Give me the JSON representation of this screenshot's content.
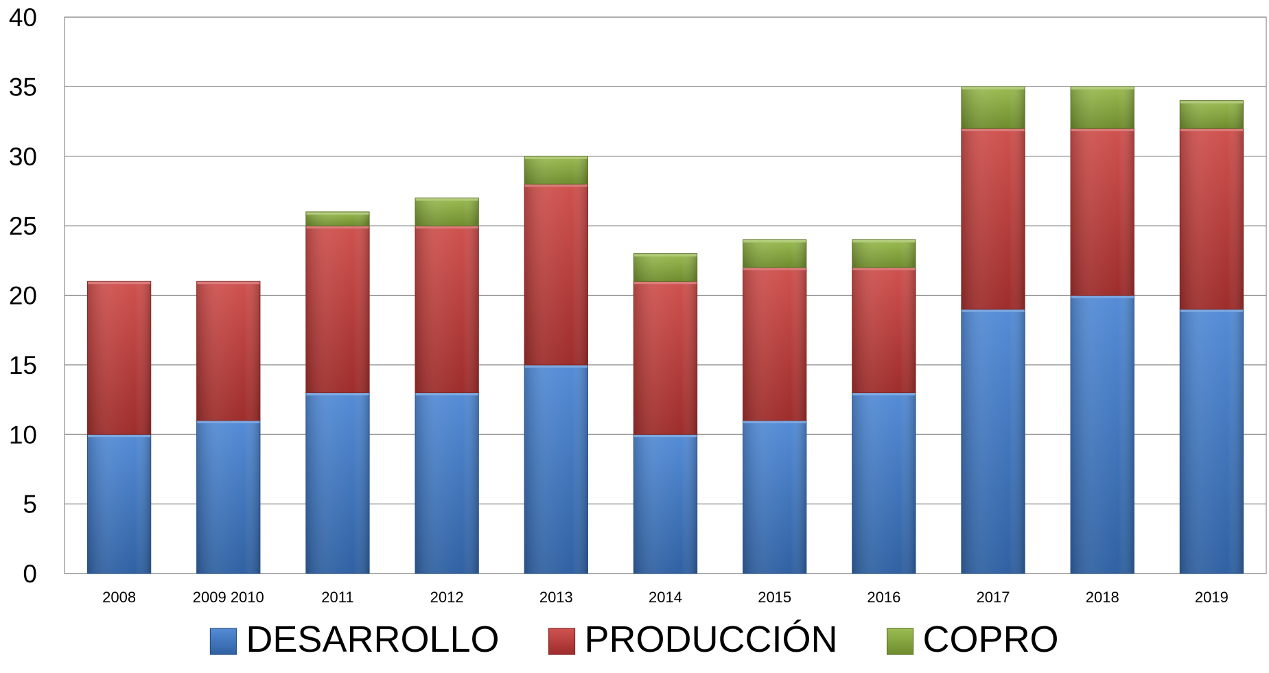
{
  "chart_data": {
    "type": "bar",
    "stacked": true,
    "categories": [
      "2008",
      "2009 2010",
      "2011",
      "2012",
      "2013",
      "2014",
      "2015",
      "2016",
      "2017",
      "2018",
      "2019"
    ],
    "series": [
      {
        "name": "DESARROLLO",
        "color": "#3D7CD0",
        "values": [
          10,
          11,
          13,
          13,
          15,
          10,
          11,
          13,
          19,
          20,
          19
        ]
      },
      {
        "name": "PRODUCCIÓN",
        "color": "#C93A37",
        "values": [
          11,
          10,
          12,
          12,
          13,
          11,
          11,
          9,
          13,
          12,
          13
        ]
      },
      {
        "name": "COPRO",
        "color": "#8DB33A",
        "values": [
          0,
          0,
          1,
          2,
          2,
          2,
          2,
          2,
          3,
          3,
          2
        ]
      }
    ],
    "yticks": [
      0,
      5,
      10,
      15,
      20,
      25,
      30,
      35,
      40
    ],
    "ylim": [
      0,
      40
    ],
    "grid": true,
    "legend_position": "bottom",
    "title": "",
    "xlabel": "",
    "ylabel": ""
  }
}
